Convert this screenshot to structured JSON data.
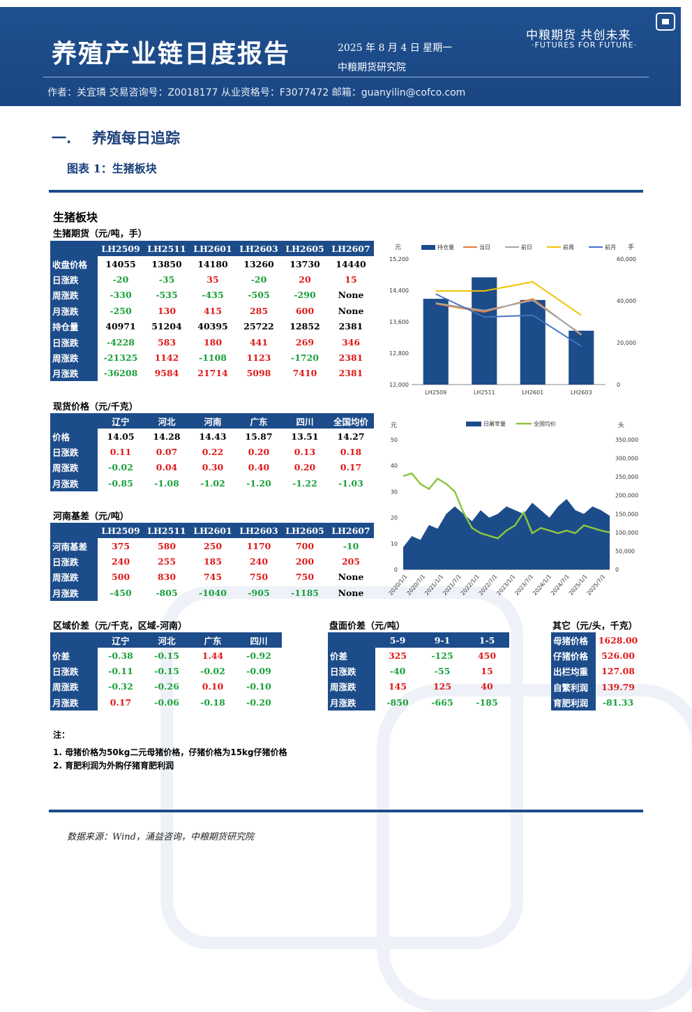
{
  "header": {
    "title": "养殖产业链日度报告",
    "date": "2025 年 8 月 4 日 星期一",
    "institute": "中粮期货研究院",
    "author_line": "作者：关宜璘    交易咨询号：Z0018177 从业资格号：F3077472    邮箱：guanyilin@cofco.com",
    "logo_cn": "中粮期货  共创未来",
    "logo_en": "·FUTURES FOR FUTURE·"
  },
  "section": {
    "num": "一.",
    "title": "养殖每日追踪"
  },
  "figure_title": "图表 1：生猪板块",
  "panel_title": "生猪板块",
  "futures": {
    "caption": "生猪期货（元/吨，手）",
    "columns": [
      "LH2509",
      "LH2511",
      "LH2601",
      "LH2603",
      "LH2605",
      "LH2607"
    ],
    "rows": [
      {
        "label": "收盘价格",
        "values": [
          "14055",
          "13850",
          "14180",
          "13260",
          "13730",
          "14440"
        ]
      },
      {
        "label": "日涨跌",
        "values": [
          "-20",
          "-35",
          "35",
          "-20",
          "20",
          "15"
        ]
      },
      {
        "label": "周涨跌",
        "values": [
          "-330",
          "-535",
          "-435",
          "-505",
          "-290",
          "None"
        ]
      },
      {
        "label": "月涨跌",
        "values": [
          "-250",
          "130",
          "415",
          "285",
          "600",
          "None"
        ]
      },
      {
        "label": "持仓量",
        "values": [
          "40971",
          "51204",
          "40395",
          "25722",
          "12852",
          "2381"
        ]
      },
      {
        "label": "日涨跌",
        "values": [
          "-4228",
          "583",
          "180",
          "441",
          "269",
          "346"
        ]
      },
      {
        "label": "周涨跌",
        "values": [
          "-21325",
          "1142",
          "-1108",
          "1123",
          "-1720",
          "2381"
        ]
      },
      {
        "label": "月涨跌",
        "values": [
          "-36208",
          "9584",
          "21714",
          "5098",
          "7410",
          "2381"
        ]
      }
    ]
  },
  "spot": {
    "caption": "现货价格（元/千克）",
    "columns": [
      "辽宁",
      "河北",
      "河南",
      "广东",
      "四川",
      "全国均价"
    ],
    "rows": [
      {
        "label": "价格",
        "values": [
          "14.05",
          "14.28",
          "14.43",
          "15.87",
          "13.51",
          "14.27"
        ]
      },
      {
        "label": "日涨跌",
        "values": [
          "0.11",
          "0.07",
          "0.22",
          "0.20",
          "0.13",
          "0.18"
        ]
      },
      {
        "label": "周涨跌",
        "values": [
          "-0.02",
          "0.04",
          "0.30",
          "0.40",
          "0.20",
          "0.17"
        ]
      },
      {
        "label": "月涨跌",
        "values": [
          "-0.85",
          "-1.08",
          "-1.02",
          "-1.20",
          "-1.22",
          "-1.03"
        ]
      }
    ]
  },
  "basis": {
    "caption": "河南基差（元/吨）",
    "columns": [
      "LH2509",
      "LH2511",
      "LH2601",
      "LH2603",
      "LH2605",
      "LH2607"
    ],
    "rows": [
      {
        "label": "河南基差",
        "values": [
          "375",
          "580",
          "250",
          "1170",
          "700",
          "-10"
        ]
      },
      {
        "label": "日涨跌",
        "values": [
          "240",
          "255",
          "185",
          "240",
          "200",
          "205"
        ]
      },
      {
        "label": "周涨跌",
        "values": [
          "500",
          "830",
          "745",
          "750",
          "750",
          "None"
        ]
      },
      {
        "label": "月涨跌",
        "values": [
          "-450",
          "-805",
          "-1040",
          "-905",
          "-1185",
          "None"
        ]
      }
    ]
  },
  "regional": {
    "caption": "区域价差（元/千克，区域-河南）",
    "columns": [
      "辽宁",
      "河北",
      "广东",
      "四川"
    ],
    "rows": [
      {
        "label": "价差",
        "values": [
          "-0.38",
          "-0.15",
          "1.44",
          "-0.92"
        ]
      },
      {
        "label": "日涨跌",
        "values": [
          "-0.11",
          "-0.15",
          "-0.02",
          "-0.09"
        ]
      },
      {
        "label": "周涨跌",
        "values": [
          "-0.32",
          "-0.26",
          "0.10",
          "-0.10"
        ]
      },
      {
        "label": "月涨跌",
        "values": [
          "0.17",
          "-0.06",
          "-0.18",
          "-0.20"
        ]
      }
    ]
  },
  "spread": {
    "caption": "盘面价差（元/吨）",
    "columns": [
      "5-9",
      "9-1",
      "1-5"
    ],
    "rows": [
      {
        "label": "价差",
        "values": [
          "325",
          "-125",
          "450"
        ]
      },
      {
        "label": "日涨跌",
        "values": [
          "-40",
          "-55",
          "15"
        ]
      },
      {
        "label": "周涨跌",
        "values": [
          "145",
          "125",
          "40"
        ]
      },
      {
        "label": "月涨跌",
        "values": [
          "-850",
          "-665",
          "-185"
        ]
      }
    ]
  },
  "other": {
    "caption": "其它（元/头，千克）",
    "rows": [
      {
        "label": "母猪价格",
        "value": "1628.00"
      },
      {
        "label": "仔猪价格",
        "value": "526.00"
      },
      {
        "label": "出栏均重",
        "value": "127.08"
      },
      {
        "label": "自繁利润",
        "value": "139.79"
      },
      {
        "label": "育肥利润",
        "value": "-81.33"
      }
    ]
  },
  "notes": {
    "title": "注：",
    "items": [
      "1. 母猪价格为50kg二元母猪价格，仔猪价格为15kg仔猪价格",
      "2. 育肥利润为外购仔猪育肥利润"
    ]
  },
  "source": "数据来源：Wind，涌益咨询，中粮期货研究院",
  "chart_data": [
    {
      "type": "bar",
      "categories": [
        "LH2509",
        "LH2511",
        "LH2601",
        "LH2603"
      ],
      "y_left_unit": "元",
      "y_right_unit": "手",
      "ylim": [
        12000,
        15200
      ],
      "y2lim": [
        0,
        60000
      ],
      "y_ticks": [
        "12,000",
        "12,800",
        "13,600",
        "14,400",
        "15,200"
      ],
      "y2_ticks": [
        "0",
        "20,000",
        "40,000",
        "60,000"
      ],
      "series": [
        {
          "name": "持仓量",
          "kind": "bar",
          "axis": "right",
          "color": "#1d4c8a",
          "values": [
            40971,
            51204,
            40395,
            25722
          ]
        },
        {
          "name": "当日",
          "kind": "line",
          "axis": "left",
          "color": "#e07b39",
          "values": [
            14055,
            13850,
            14180,
            13260
          ]
        },
        {
          "name": "前日",
          "kind": "line",
          "axis": "left",
          "color": "#a5a5a5",
          "values": [
            14075,
            13885,
            14145,
            13280
          ]
        },
        {
          "name": "前周",
          "kind": "line",
          "axis": "left",
          "color": "#f2c200",
          "values": [
            14385,
            14385,
            14615,
            13765
          ]
        },
        {
          "name": "前月",
          "kind": "line",
          "axis": "left",
          "color": "#4472c4",
          "values": [
            14305,
            13720,
            13765,
            12975
          ]
        }
      ],
      "legend": "top"
    },
    {
      "type": "area",
      "x_ticks": [
        "2020/1/1",
        "2020/7/1",
        "2021/1/1",
        "2021/7/1",
        "2022/1/1",
        "2022/7/1",
        "2023/1/1",
        "2023/7/1",
        "2024/1/1",
        "2024/7/1",
        "2025/1/1",
        "2025/7/1"
      ],
      "y_left_unit": "元",
      "y_right_unit": "头",
      "ylim": [
        0,
        50
      ],
      "y2lim": [
        0,
        350000
      ],
      "y_ticks": [
        "0",
        "10",
        "20",
        "30",
        "40",
        "50"
      ],
      "y2_ticks": [
        "0",
        "50,000",
        "100,000",
        "150,000",
        "200,000",
        "250,000",
        "300,000",
        "350,000"
      ],
      "series": [
        {
          "name": "日屠宰量",
          "kind": "area",
          "axis": "right",
          "color": "#1d4c8a",
          "values": [
            60000,
            90000,
            80000,
            120000,
            110000,
            150000,
            170000,
            150000,
            130000,
            160000,
            140000,
            150000,
            170000,
            160000,
            150000,
            180000,
            160000,
            140000,
            170000,
            190000,
            160000,
            150000,
            170000,
            160000,
            145000
          ]
        },
        {
          "name": "全国均价",
          "kind": "line",
          "axis": "left",
          "color": "#8cc63f",
          "values": [
            36,
            37,
            33,
            31,
            35,
            33,
            30,
            22,
            16,
            14,
            13,
            12,
            15,
            17,
            22,
            14,
            16,
            15,
            14,
            15,
            14,
            17,
            16,
            15,
            14.3
          ]
        }
      ],
      "legend": "top"
    }
  ]
}
